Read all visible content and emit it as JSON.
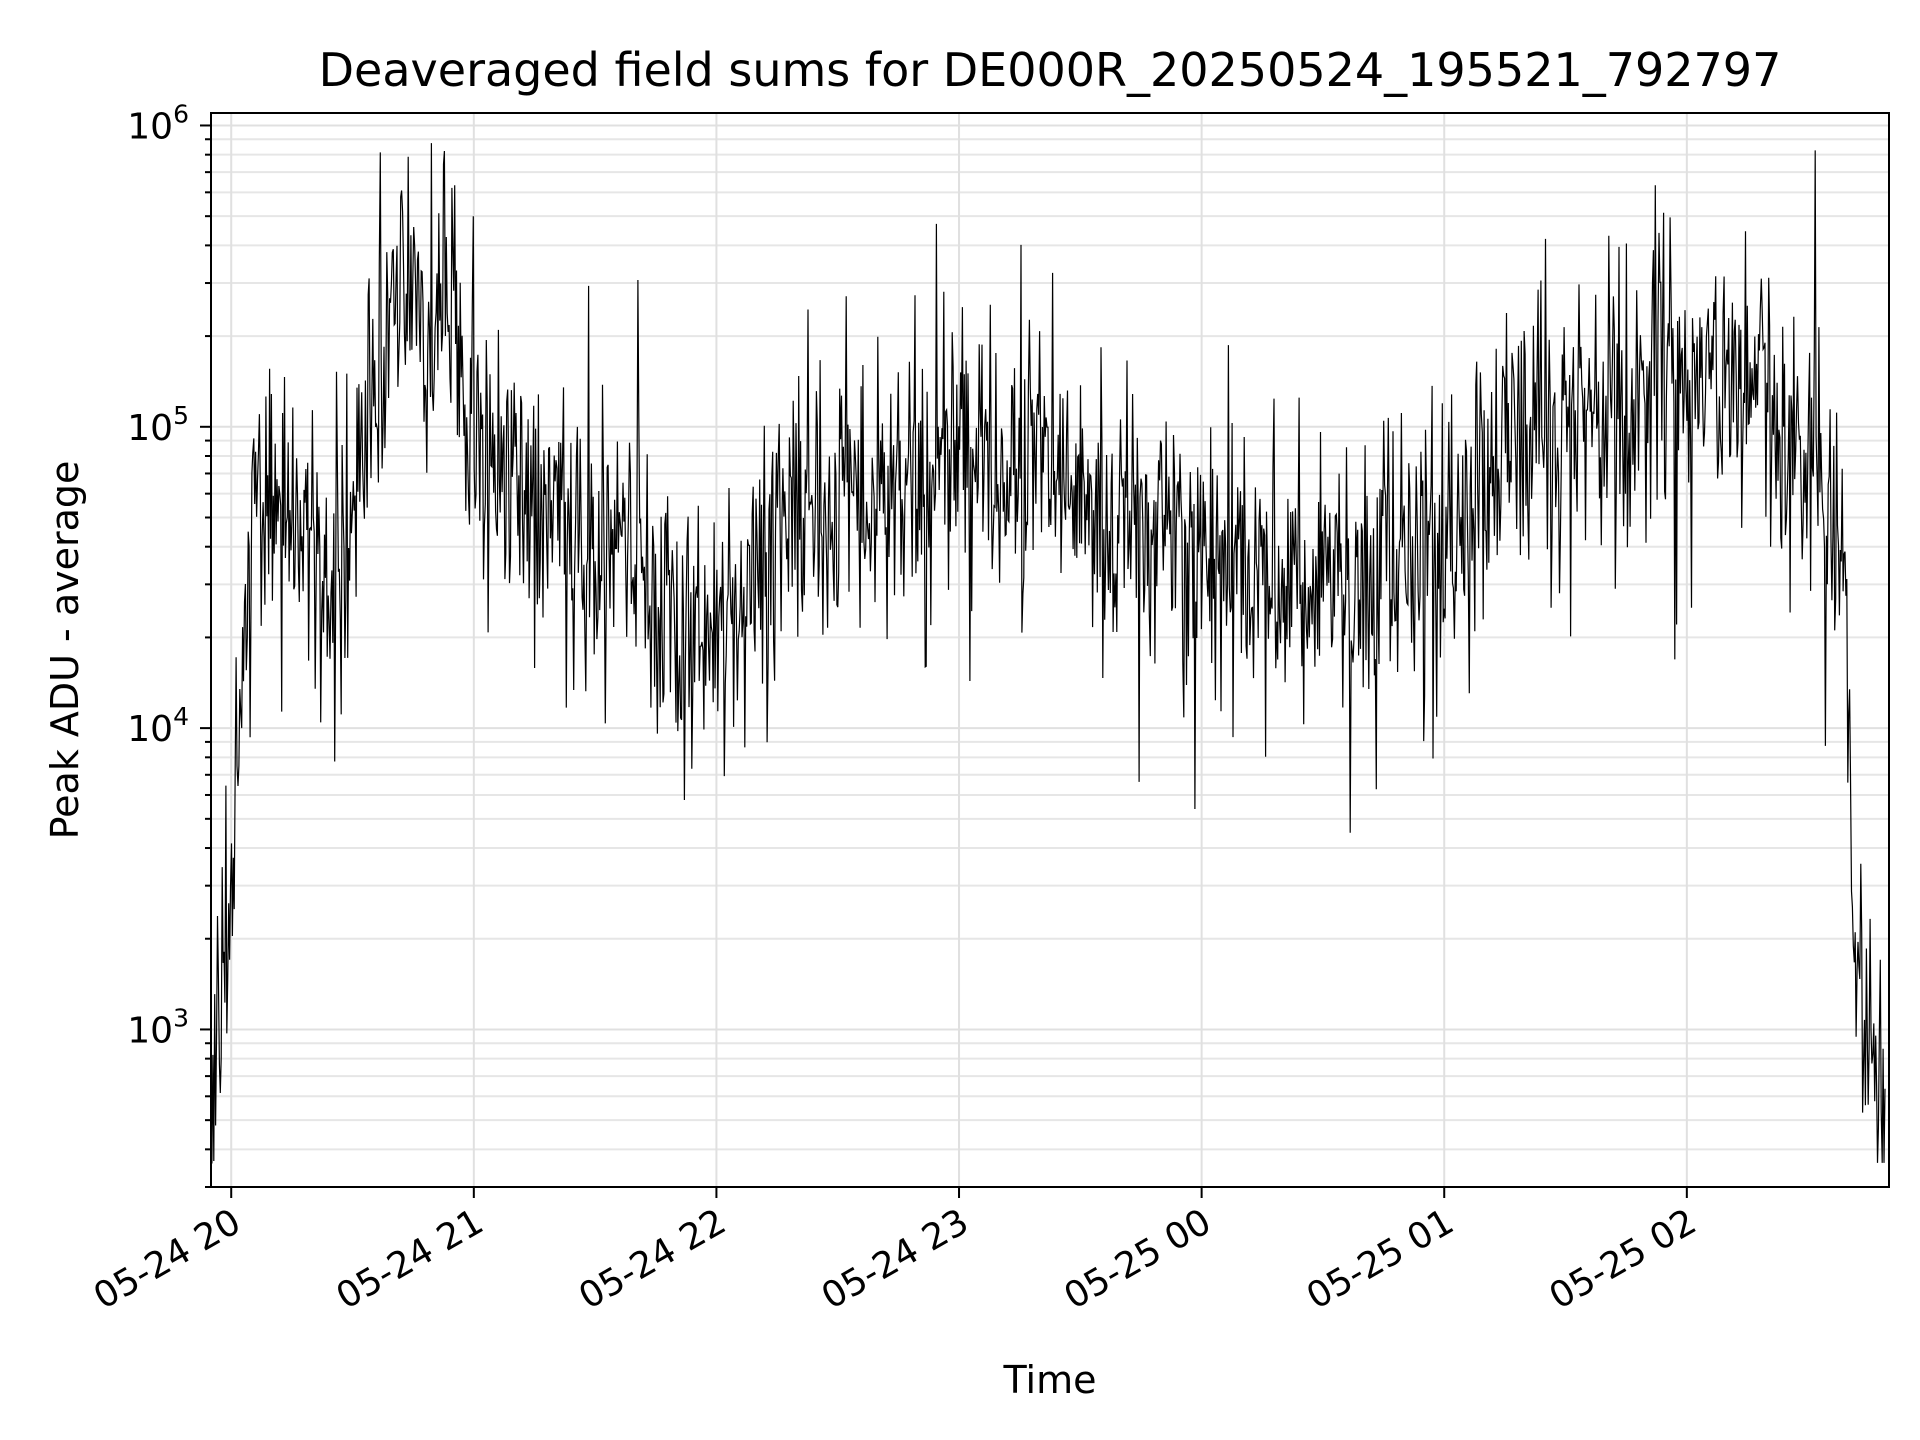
{
  "chart_data": {
    "type": "line",
    "title": "Deaveraged field sums for DE000R_20250524_195521_792797",
    "xlabel": "Time",
    "ylabel": "Peak ADU - average",
    "y_scale": "log",
    "ylim": [
      300,
      1100000
    ],
    "xlim": [
      "2025-05-24 19:55",
      "2025-05-25 02:50"
    ],
    "grid": true,
    "line_color": "#000000",
    "x_ticks": [
      {
        "t": "2025-05-24 20:00",
        "label": "05-24 20"
      },
      {
        "t": "2025-05-24 21:00",
        "label": "05-24 21"
      },
      {
        "t": "2025-05-24 22:00",
        "label": "05-24 22"
      },
      {
        "t": "2025-05-24 23:00",
        "label": "05-24 23"
      },
      {
        "t": "2025-05-25 00:00",
        "label": "05-25 00"
      },
      {
        "t": "2025-05-25 01:00",
        "label": "05-25 01"
      },
      {
        "t": "2025-05-25 02:00",
        "label": "05-25 02"
      }
    ],
    "y_ticks": [
      {
        "v": 1000,
        "base": "10",
        "exp": "3"
      },
      {
        "v": 10000,
        "base": "10",
        "exp": "4"
      },
      {
        "v": 100000,
        "base": "10",
        "exp": "5"
      },
      {
        "v": 1000000,
        "base": "10",
        "exp": "6"
      }
    ],
    "series": [
      {
        "x": [
          "2025-05-24 19:55",
          "2025-05-24 19:58",
          "2025-05-24 20:00",
          "2025-05-24 20:02",
          "2025-05-24 20:04",
          "2025-05-24 20:06",
          "2025-05-24 20:08",
          "2025-05-24 20:10",
          "2025-05-24 20:13",
          "2025-05-24 20:16",
          "2025-05-24 20:20",
          "2025-05-24 20:25",
          "2025-05-24 20:30",
          "2025-05-24 20:35",
          "2025-05-24 20:40",
          "2025-05-24 20:44",
          "2025-05-24 20:47",
          "2025-05-24 20:50",
          "2025-05-24 20:53",
          "2025-05-24 20:56",
          "2025-05-24 21:00",
          "2025-05-24 21:10",
          "2025-05-24 21:20",
          "2025-05-24 21:30",
          "2025-05-24 21:40",
          "2025-05-24 21:50",
          "2025-05-24 22:00",
          "2025-05-24 22:15",
          "2025-05-24 22:30",
          "2025-05-24 22:45",
          "2025-05-24 23:00",
          "2025-05-24 23:15",
          "2025-05-24 23:30",
          "2025-05-24 23:45",
          "2025-05-25 00:00",
          "2025-05-25 00:15",
          "2025-05-25 00:30",
          "2025-05-25 00:45",
          "2025-05-25 01:00",
          "2025-05-25 01:15",
          "2025-05-25 01:30",
          "2025-05-25 01:45",
          "2025-05-25 01:55",
          "2025-05-25 02:05",
          "2025-05-25 02:15",
          "2025-05-25 02:25",
          "2025-05-25 02:35",
          "2025-05-25 02:39",
          "2025-05-25 02:41",
          "2025-05-25 02:43",
          "2025-05-25 02:46",
          "2025-05-25 02:49"
        ],
        "y": [
          600,
          1500,
          3000,
          12000,
          25000,
          80000,
          45000,
          60000,
          55000,
          50000,
          40000,
          20000,
          60000,
          100000,
          250000,
          300000,
          280000,
          200000,
          250000,
          180000,
          90000,
          60000,
          50000,
          40000,
          35000,
          25000,
          20000,
          45000,
          60000,
          60000,
          80000,
          70000,
          60000,
          50000,
          40000,
          30000,
          30000,
          30000,
          40000,
          80000,
          100000,
          110000,
          180000,
          150000,
          120000,
          90000,
          60000,
          40000,
          3000,
          1000,
          700,
          600
        ]
      }
    ]
  }
}
